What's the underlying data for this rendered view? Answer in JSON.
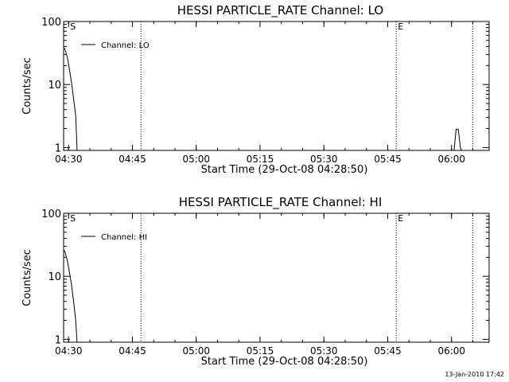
{
  "chart_data": [
    {
      "type": "line",
      "title": "HESSI PARTICLE_RATE Channel: LO",
      "xlabel": "Start Time (29-Oct-08 04:28:50)",
      "ylabel": "Counts/sec",
      "yscale": "log",
      "ylim": [
        0.9,
        100
      ],
      "xlim": [
        "04:28:50",
        "06:08:50"
      ],
      "xticks": [
        "04:30",
        "04:45",
        "05:00",
        "05:15",
        "05:30",
        "05:45",
        "06:00"
      ],
      "yticks": [
        "1",
        "10",
        "100"
      ],
      "legend": {
        "position": "top-left",
        "entries": [
          "Channel: LO"
        ]
      },
      "markers": [
        {
          "time": "04:30",
          "label": "S"
        },
        {
          "time": "05:47",
          "label": "E"
        }
      ],
      "dotted_lines": [
        "04:47",
        "05:47",
        "06:05"
      ],
      "series": [
        {
          "name": "Channel: LO",
          "segments": [
            {
              "x": [
                "04:29:00",
                "04:29:20",
                "04:29:45",
                "04:30:10",
                "04:30:40",
                "04:31:10",
                "04:31:40",
                "04:32:00"
              ],
              "y": [
                38,
                33,
                26,
                18,
                11,
                6,
                3.2,
                0.85
              ]
            },
            {
              "x": [
                "06:00:35",
                "06:01:05",
                "06:01:35",
                "06:02:05",
                "06:02:20"
              ],
              "y": [
                0.85,
                1.95,
                1.95,
                1.0,
                0.85
              ]
            }
          ]
        }
      ]
    },
    {
      "type": "line",
      "title": "HESSI PARTICLE_RATE Channel: HI",
      "xlabel": "Start Time (29-Oct-08 04:28:50)",
      "ylabel": "Counts/sec",
      "yscale": "log",
      "ylim": [
        0.9,
        100
      ],
      "xlim": [
        "04:28:50",
        "06:08:50"
      ],
      "xticks": [
        "04:30",
        "04:45",
        "05:00",
        "05:15",
        "05:30",
        "05:45",
        "06:00"
      ],
      "yticks": [
        "1",
        "10",
        "100"
      ],
      "legend": {
        "position": "top-left",
        "entries": [
          "Channel: HI"
        ]
      },
      "markers": [
        {
          "time": "04:30",
          "label": "S"
        },
        {
          "time": "05:47",
          "label": "E"
        }
      ],
      "dotted_lines": [
        "04:47",
        "05:47",
        "06:05"
      ],
      "series": [
        {
          "name": "Channel: HI",
          "segments": [
            {
              "x": [
                "04:29:00",
                "04:29:20",
                "04:29:45",
                "04:30:10",
                "04:30:40",
                "04:31:10",
                "04:31:40",
                "04:32:00"
              ],
              "y": [
                26,
                22,
                17,
                12,
                7.5,
                4,
                2,
                0.85
              ]
            }
          ]
        }
      ]
    }
  ],
  "footer": {
    "timestamp": "13-Jan-2010 17:42"
  }
}
